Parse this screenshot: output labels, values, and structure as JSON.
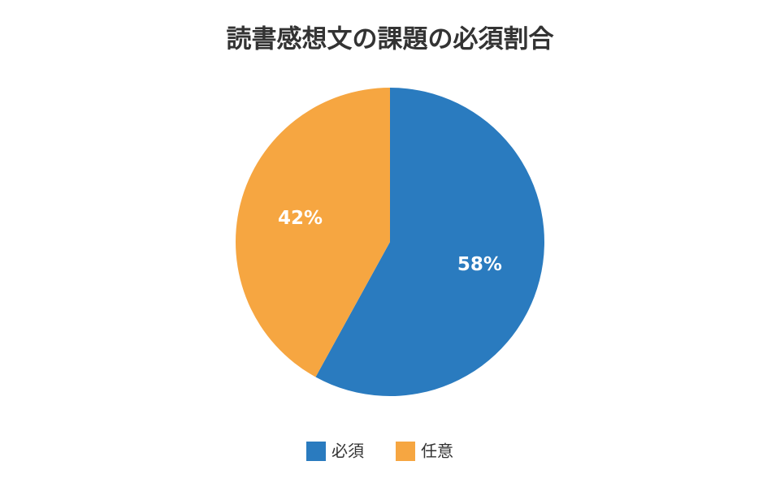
{
  "chart_data": {
    "type": "pie",
    "title": "読書感想文の課題の必須割合",
    "categories": [
      "必須",
      "任意"
    ],
    "values": [
      58,
      42
    ],
    "value_labels": [
      "58%",
      "42%"
    ],
    "colors": [
      "#2a7bbf",
      "#f6a641"
    ],
    "legend": "bottom"
  }
}
